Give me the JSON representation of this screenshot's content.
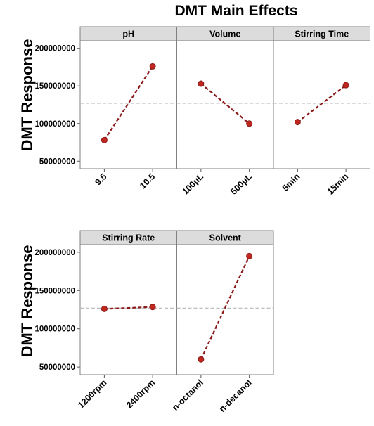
{
  "chart_data": {
    "type": "line",
    "title": "DMT Main Effects",
    "ylabel": "DMT Response",
    "ylim": [
      40000000,
      210000000
    ],
    "yticks": [
      "50000000",
      "100000000",
      "150000000",
      "200000000"
    ],
    "ytick_values": [
      50000000,
      100000000,
      150000000,
      200000000
    ],
    "mean": 127000000,
    "colors": {
      "line": "#8b1a1a",
      "marker": "#c0281f",
      "mean": "#b5b5b5",
      "header_bg": "#dcdcdc"
    },
    "rows": [
      {
        "panels": [
          {
            "name": "pH",
            "categories": [
              "9.5",
              "10.5"
            ],
            "values": [
              78000000,
              176000000
            ]
          },
          {
            "name": "Volume",
            "categories": [
              "100μL",
              "500μL"
            ],
            "values": [
              153000000,
              100000000
            ]
          },
          {
            "name": "Stirring Time",
            "categories": [
              "5min",
              "15min"
            ],
            "values": [
              102000000,
              151000000
            ]
          }
        ]
      },
      {
        "panels": [
          {
            "name": "Stirring Rate",
            "categories": [
              "1200rpm",
              "2400rpm"
            ],
            "values": [
              126000000,
              128500000
            ]
          },
          {
            "name": "Solvent",
            "categories": [
              "n-octanol",
              "n-decanol"
            ],
            "values": [
              60000000,
              195000000
            ]
          }
        ]
      }
    ]
  }
}
